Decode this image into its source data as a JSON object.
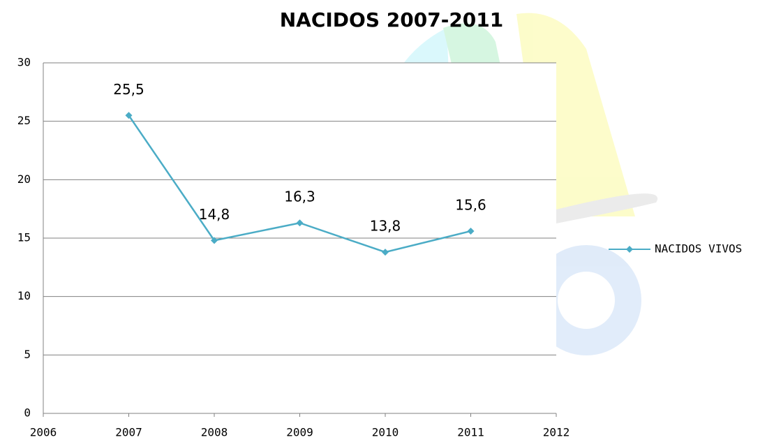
{
  "chart_data": {
    "type": "line",
    "title": "NACIDOS 2007-2011",
    "x": [
      2007,
      2008,
      2009,
      2010,
      2011
    ],
    "series": [
      {
        "name": "NACIDOS VIVOS",
        "color": "#4bacc6",
        "values": [
          25.5,
          14.8,
          16.3,
          13.8,
          15.6
        ],
        "value_labels": [
          "25,5",
          "14,8",
          "16,3",
          "13,8",
          "15,6"
        ]
      }
    ],
    "xlim": [
      2006,
      2012
    ],
    "xticks": [
      2006,
      2007,
      2008,
      2009,
      2010,
      2011,
      2012
    ],
    "ylim": [
      0,
      30
    ],
    "yticks": [
      0,
      5,
      10,
      15,
      20,
      25,
      30
    ],
    "grid": true,
    "legend": "right"
  }
}
